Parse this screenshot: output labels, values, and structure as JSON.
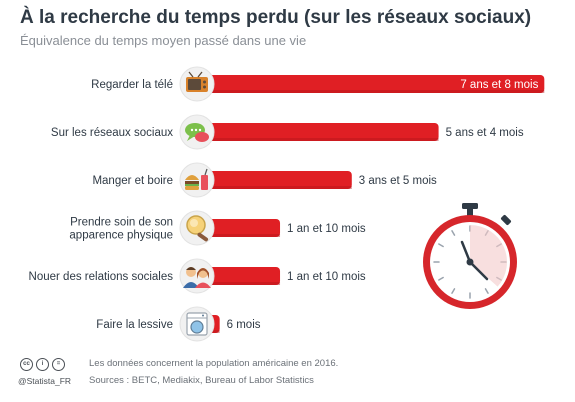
{
  "header": {
    "title": "À la recherche du temps perdu (sur les réseaux sociaux)",
    "subtitle": "Équivalence du temps moyen passé dans une vie"
  },
  "colors": {
    "bar": "#e01f24",
    "bar_dark": "#b3151a",
    "text": "#2f3a45",
    "icon_bg": "#f1f1f1",
    "clock_red": "#d6262b"
  },
  "chart_data": {
    "type": "bar",
    "orientation": "horizontal",
    "unit": "years",
    "categories": [
      "Regarder la télé",
      "Sur les réseaux sociaux",
      "Manger et boire",
      "Prendre soin de son apparence physique",
      "Nouer des relations sociales",
      "Faire la lessive"
    ],
    "category_lines": [
      [
        "Regarder la télé"
      ],
      [
        "Sur les réseaux sociaux"
      ],
      [
        "Manger et boire"
      ],
      [
        "Prendre soin de son",
        "apparence physique"
      ],
      [
        "Nouer des relations sociales"
      ],
      [
        "Faire la lessive"
      ]
    ],
    "values": [
      7.667,
      5.333,
      3.417,
      1.833,
      1.833,
      0.5
    ],
    "value_labels": [
      "7 ans et 8 mois",
      "5 ans et 4 mois",
      "3 ans et 5 mois",
      "1 an et 10 mois",
      "1 an et 10 mois",
      "6 mois"
    ],
    "icons": [
      "tv-icon",
      "chat-bubbles-icon",
      "burger-drink-icon",
      "mirror-brush-icon",
      "couple-icon",
      "washing-machine-icon"
    ],
    "title": "À la recherche du temps perdu (sur les réseaux sociaux)",
    "subtitle": "Équivalence du temps moyen passé dans une vie",
    "xlabel": "",
    "ylabel": "",
    "grid": false,
    "legend": "none"
  },
  "decor": {
    "clock_icon": "stopwatch-icon"
  },
  "footer": {
    "license_icons": [
      "cc",
      "i",
      "="
    ],
    "handle": "@Statista_FR",
    "note": "Les données concernent la population américaine en 2016.",
    "sources": "Sources : BETC, Mediakix, Bureau of Labor Statistics"
  }
}
